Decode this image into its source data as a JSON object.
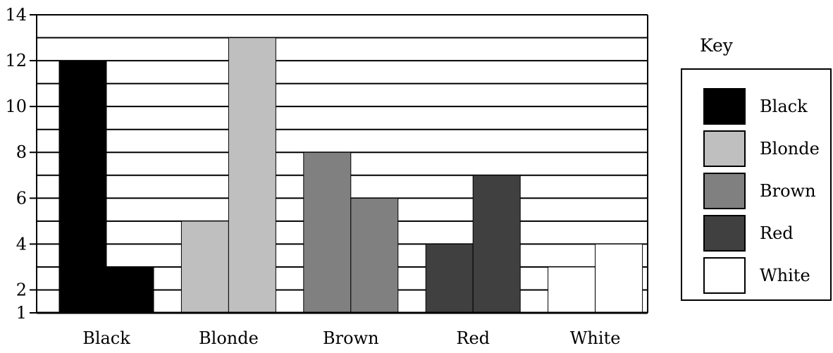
{
  "chart_data": {
    "type": "bar",
    "categories": [
      "Black",
      "Blonde",
      "Brown",
      "Red",
      "White"
    ],
    "bars": [
      {
        "category": "Black",
        "values": [
          12,
          3
        ],
        "color": "#000000"
      },
      {
        "category": "Blonde",
        "values": [
          5,
          13
        ],
        "color": "#bfbfbf"
      },
      {
        "category": "Brown",
        "values": [
          8,
          6
        ],
        "color": "#808080"
      },
      {
        "category": "Red",
        "values": [
          4,
          7
        ],
        "color": "#404040"
      },
      {
        "category": "White",
        "values": [
          3,
          4
        ],
        "color": "#ffffff"
      }
    ],
    "ylim": [
      1,
      14
    ],
    "yticks": [
      1,
      2,
      4,
      6,
      8,
      10,
      12,
      14
    ],
    "grid": true,
    "legend": {
      "title": "Key",
      "placement": "right",
      "entries": [
        {
          "label": "Black",
          "color": "#000000"
        },
        {
          "label": "Blonde",
          "color": "#bfbfbf"
        },
        {
          "label": "Brown",
          "color": "#808080"
        },
        {
          "label": "Red",
          "color": "#404040"
        },
        {
          "label": "White",
          "color": "#ffffff"
        }
      ]
    }
  }
}
